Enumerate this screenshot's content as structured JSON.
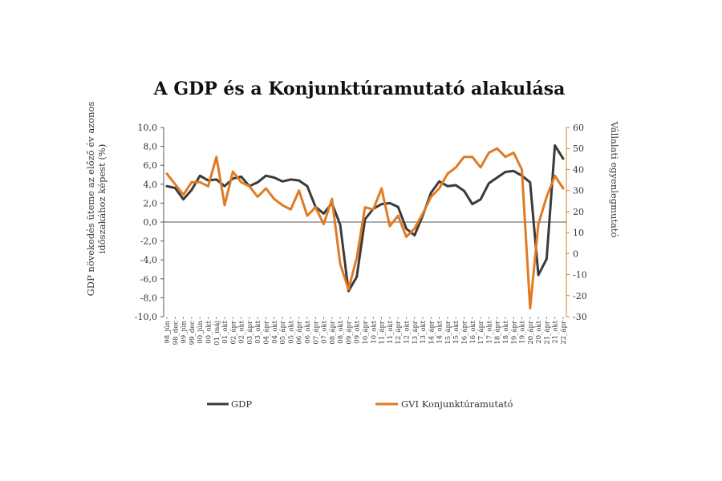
{
  "chart_data": {
    "type": "line",
    "title": "A GDP és a Konjunktúramutató alakulása",
    "ylabel_left": "GDP növekedés üteme az előző év azonos időszakához képest (%)",
    "ylabel_left_lines": [
      "GDP növekedés üteme az előző év azonos",
      "időszakához képest (%)"
    ],
    "ylabel_right": "Vállalati egyenlegmutató",
    "ylim_left": [
      -10,
      10
    ],
    "ylim_right": [
      -30,
      60
    ],
    "yticks_left": [
      "10,0",
      "8,0",
      "6,0",
      "4,0",
      "2,0",
      "0,0",
      "-2,0",
      "-4,0",
      "-6,0",
      "-8,0",
      "-10,0"
    ],
    "yticks_right": [
      "60",
      "50",
      "40",
      "30",
      "20",
      "10",
      "0",
      "-10",
      "-20",
      "-30"
    ],
    "x_tick_labels": [
      "98_jún",
      "98_dec",
      "99_jún",
      "99_dec",
      "00_jún",
      "00_okt",
      "01_máj",
      "01_okt",
      "02_ápr",
      "02_okt",
      "03_ápr",
      "03_okt",
      "04_ápr",
      "04_okt",
      "05_ápr",
      "05_okt",
      "06_ápr",
      "06_okt",
      "07_ápr",
      "07_okt",
      "08_ápr",
      "08_okt",
      "09_ápr",
      "09_okt",
      "10_ápr",
      "10_okt",
      "11_ápr",
      "11_okt",
      "12_ápr",
      "12_okt",
      "13_ápr",
      "13_okt",
      "14_ápr",
      "14_okt",
      "15_ápr",
      "15_okt",
      "16_ápr",
      "16_okt",
      "17_ápr",
      "17_okt",
      "18_ápr",
      "18_okt",
      "19_ápr",
      "19_okt",
      "20_ápr",
      "20_okt",
      "21_ápr",
      "21_okt",
      "22_ápr"
    ],
    "series": [
      {
        "name": "GDP",
        "axis": "left",
        "color": "#3a3a3a",
        "values": [
          3.8,
          3.6,
          2.4,
          3.4,
          4.9,
          4.4,
          4.5,
          3.8,
          4.6,
          4.8,
          3.8,
          4.2,
          4.9,
          4.7,
          4.3,
          4.5,
          4.4,
          3.8,
          1.6,
          0.9,
          2.0,
          -0.3,
          -7.3,
          -5.8,
          0.3,
          1.4,
          1.9,
          2.0,
          1.6,
          -0.7,
          -1.4,
          0.7,
          3.1,
          4.3,
          3.8,
          3.9,
          3.3,
          1.9,
          2.4,
          4.1,
          4.7,
          5.3,
          5.4,
          4.9,
          4.2,
          -5.6,
          -3.9,
          8.1,
          6.7
        ]
      },
      {
        "name": "GVI Konjunktúramutató",
        "axis": "right",
        "color": "#e07b22",
        "values": [
          38,
          33,
          28,
          34,
          34,
          32,
          46,
          23,
          39,
          34,
          32,
          27,
          31,
          26,
          23,
          21,
          30,
          18,
          22,
          14,
          26,
          -5,
          -17,
          -2,
          22,
          21,
          31,
          13,
          18,
          8,
          12,
          19,
          27,
          31,
          38,
          41,
          46,
          46,
          41,
          48,
          50,
          46,
          48,
          40,
          -26,
          14,
          27,
          37,
          31
        ]
      }
    ],
    "legend": {
      "position": "bottom",
      "entries": [
        "GDP",
        "GVI Konjunktúramutató"
      ]
    },
    "grid": false
  }
}
